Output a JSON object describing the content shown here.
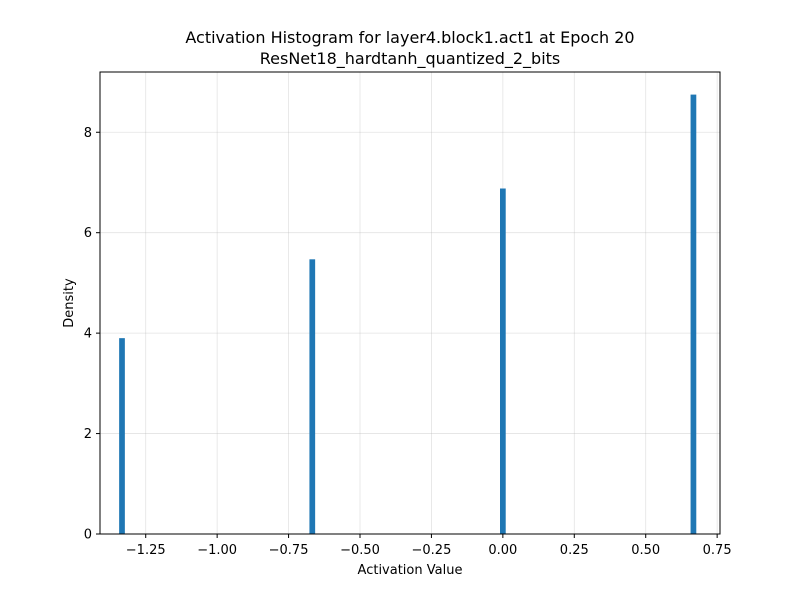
{
  "chart_data": {
    "type": "bar",
    "title": "Activation Histogram for layer4.block1.act1 at Epoch 20",
    "subtitle": "ResNet18_hardtanh_quantized_2_bits",
    "xlabel": "Activation Value",
    "ylabel": "Density",
    "xlim": [
      -1.41,
      0.76
    ],
    "ylim": [
      0,
      9.2
    ],
    "x_ticks": [
      -1.25,
      -1.0,
      -0.75,
      -0.5,
      -0.25,
      0.0,
      0.25,
      0.5,
      0.75
    ],
    "x_tick_labels": [
      "−1.25",
      "−1.00",
      "−0.75",
      "−0.50",
      "−0.25",
      "0.00",
      "0.25",
      "0.50",
      "0.75"
    ],
    "y_ticks": [
      0,
      2,
      4,
      6,
      8
    ],
    "y_tick_labels": [
      "0",
      "2",
      "4",
      "6",
      "8"
    ],
    "bar_width": 0.02,
    "bars": [
      {
        "x": -1.333,
        "value": 3.9
      },
      {
        "x": -0.667,
        "value": 5.47
      },
      {
        "x": 0.0,
        "value": 6.88
      },
      {
        "x": 0.667,
        "value": 8.75
      }
    ],
    "grid": true,
    "color": "#1f77b4"
  }
}
